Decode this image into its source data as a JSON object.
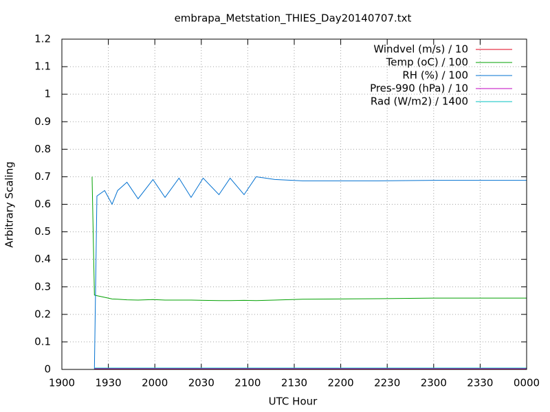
{
  "chart_data": {
    "type": "line",
    "title": "embrapa_Metstation_THIES_Day20140707.txt",
    "x_label": "UTC Hour",
    "y_label": "Arbitrary Scaling",
    "xlim": [
      19,
      24
    ],
    "ylim": [
      0,
      1.2
    ],
    "xticks": [
      {
        "value": 19,
        "label": "1900"
      },
      {
        "value": 19.5,
        "label": "1930"
      },
      {
        "value": 20,
        "label": "2000"
      },
      {
        "value": 20.5,
        "label": "2030"
      },
      {
        "value": 21,
        "label": "2100"
      },
      {
        "value": 21.5,
        "label": "2130"
      },
      {
        "value": 22,
        "label": "2200"
      },
      {
        "value": 22.5,
        "label": "2230"
      },
      {
        "value": 23,
        "label": "2300"
      },
      {
        "value": 23.5,
        "label": "2330"
      },
      {
        "value": 24,
        "label": "0000"
      }
    ],
    "yticks": [
      0,
      0.1,
      0.2,
      0.3,
      0.4,
      0.5,
      0.6,
      0.7,
      0.8,
      0.9,
      1,
      1.1,
      1.2
    ],
    "grid": true,
    "legend": "top-right",
    "x": [
      19.325,
      19.35,
      19.377,
      19.46,
      19.54,
      19.6,
      19.7,
      19.82,
      19.98,
      20.11,
      20.26,
      20.39,
      20.52,
      20.69,
      20.81,
      20.96,
      21.09,
      21.29,
      21.59,
      22,
      22.4,
      23,
      24
    ],
    "series": [
      {
        "name": "Windvel (m/s) / 10",
        "color": "#e0001a",
        "values": [
          null,
          0.002,
          0.002,
          0.002,
          0.002,
          0.002,
          0.002,
          0.002,
          0.002,
          0.002,
          0.002,
          0.002,
          0.002,
          0.002,
          0.002,
          0.002,
          0.002,
          0.002,
          0.002,
          0.002,
          0.002,
          0.002,
          0.002
        ]
      },
      {
        "name": "Temp (oC) / 100",
        "color": "#00a000",
        "values": [
          0.7,
          0.27,
          0.268,
          0.262,
          0.256,
          0.255,
          0.253,
          0.252,
          0.254,
          0.252,
          0.252,
          0.252,
          0.251,
          0.25,
          0.25,
          0.251,
          0.25,
          0.252,
          0.255,
          0.256,
          0.257,
          0.259,
          0.259
        ]
      },
      {
        "name": "RH (%) / 100",
        "color": "#0070d0",
        "values": [
          null,
          0,
          0.63,
          0.65,
          0.6,
          0.65,
          0.68,
          0.62,
          0.69,
          0.625,
          0.695,
          0.625,
          0.695,
          0.635,
          0.695,
          0.635,
          0.7,
          0.69,
          0.685,
          0.685,
          0.685,
          0.687,
          0.687
        ]
      },
      {
        "name": "Pres-990 (hPa) / 10",
        "color": "#c000c0",
        "values": [
          null,
          0.003,
          0.003,
          0.003,
          0.003,
          0.003,
          0.003,
          0.003,
          0.003,
          0.003,
          0.003,
          0.003,
          0.003,
          0.003,
          0.003,
          0.003,
          0.003,
          0.003,
          0.003,
          0.003,
          0.003,
          0.003,
          0.003
        ]
      },
      {
        "name": "Rad (W/m2) / 1400",
        "color": "#00c0c0",
        "values": [
          null,
          0.005,
          0.005,
          0.005,
          0.005,
          0.005,
          0.005,
          0.005,
          0.005,
          0.005,
          0.005,
          0.005,
          0.005,
          0.005,
          0.005,
          0.005,
          0.005,
          0.005,
          0.005,
          0.005,
          0.005,
          0.005,
          0.005
        ]
      }
    ]
  }
}
